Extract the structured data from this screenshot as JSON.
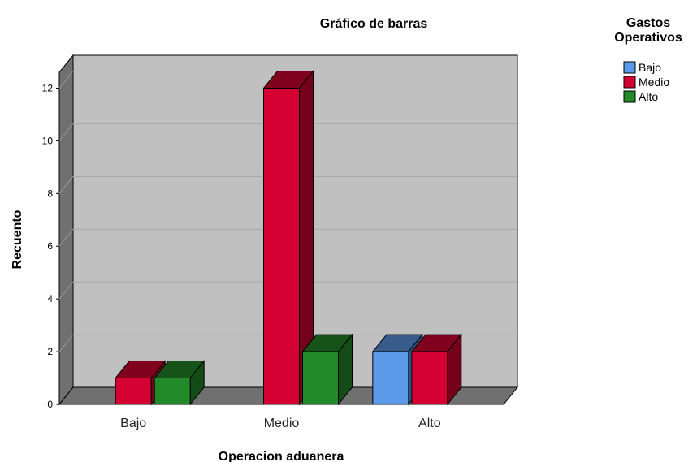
{
  "chart_data": {
    "type": "bar3d",
    "title": "Gráfico de barras",
    "x_label": "Operacion aduanera",
    "y_label": "Recuento",
    "legend_title": "Gastos Operativos",
    "categories": [
      "Bajo",
      "Medio",
      "Alto"
    ],
    "series": [
      {
        "name": "Bajo",
        "color": "#5b9ae8",
        "values": [
          0,
          0,
          2
        ]
      },
      {
        "name": "Medio",
        "color": "#d50032",
        "values": [
          1,
          12,
          2
        ]
      },
      {
        "name": "Alto",
        "color": "#238a29",
        "values": [
          1,
          2,
          0
        ]
      }
    ],
    "ylim": [
      0,
      12.6
    ],
    "yticks": [
      0,
      2,
      4,
      6,
      8,
      10,
      12
    ],
    "grid": true,
    "legend": "top-right"
  }
}
